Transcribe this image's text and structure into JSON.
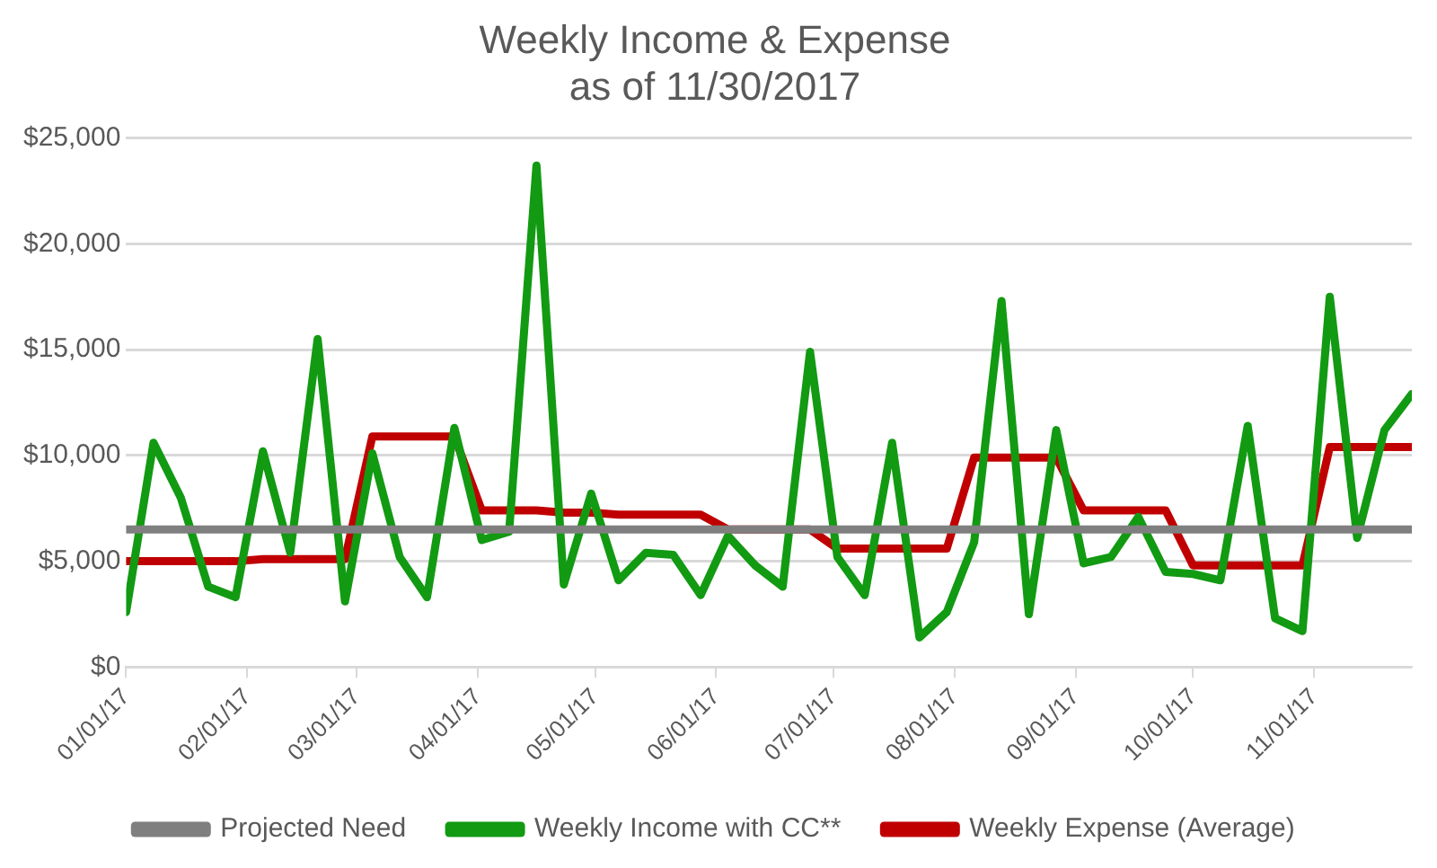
{
  "chart_data": {
    "type": "line",
    "title": "Weekly Income & Expense",
    "subtitle": "as of 11/30/2017",
    "x": [
      "2017-01-01",
      "2017-01-08",
      "2017-01-15",
      "2017-01-22",
      "2017-01-29",
      "2017-02-05",
      "2017-02-12",
      "2017-02-19",
      "2017-02-26",
      "2017-03-05",
      "2017-03-12",
      "2017-03-19",
      "2017-03-26",
      "2017-04-02",
      "2017-04-09",
      "2017-04-16",
      "2017-04-23",
      "2017-04-30",
      "2017-05-07",
      "2017-05-14",
      "2017-05-21",
      "2017-05-28",
      "2017-06-04",
      "2017-06-11",
      "2017-06-18",
      "2017-06-25",
      "2017-07-02",
      "2017-07-09",
      "2017-07-16",
      "2017-07-23",
      "2017-07-30",
      "2017-08-06",
      "2017-08-13",
      "2017-08-20",
      "2017-08-27",
      "2017-09-03",
      "2017-09-10",
      "2017-09-17",
      "2017-09-24",
      "2017-10-01",
      "2017-10-08",
      "2017-10-15",
      "2017-10-22",
      "2017-10-29",
      "2017-11-05",
      "2017-11-12",
      "2017-11-19",
      "2017-11-26"
    ],
    "series": [
      {
        "name": "Projected Need",
        "color": "#7f7f7f",
        "values": [
          6500,
          6500,
          6500,
          6500,
          6500,
          6500,
          6500,
          6500,
          6500,
          6500,
          6500,
          6500,
          6500,
          6500,
          6500,
          6500,
          6500,
          6500,
          6500,
          6500,
          6500,
          6500,
          6500,
          6500,
          6500,
          6500,
          6500,
          6500,
          6500,
          6500,
          6500,
          6500,
          6500,
          6500,
          6500,
          6500,
          6500,
          6500,
          6500,
          6500,
          6500,
          6500,
          6500,
          6500,
          6500,
          6500,
          6500,
          6500
        ]
      },
      {
        "name": "Weekly Income with CC**",
        "color": "#129a12",
        "values": [
          2600,
          10600,
          8000,
          3800,
          3300,
          10200,
          5400,
          15500,
          3100,
          10100,
          5200,
          3300,
          11300,
          6000,
          6400,
          23700,
          3900,
          8200,
          4100,
          5400,
          5300,
          3400,
          6200,
          4800,
          3800,
          14900,
          5200,
          3400,
          10600,
          1400,
          2600,
          5900,
          17300,
          2500,
          11200,
          4900,
          5200,
          7100,
          4500,
          4400,
          4100,
          11400,
          2300,
          1700,
          17500,
          6100,
          11200,
          12900
        ]
      },
      {
        "name": "Weekly Expense (Average)",
        "color": "#c00000",
        "values": [
          5000,
          5000,
          5000,
          5000,
          5000,
          5100,
          5100,
          5100,
          5100,
          10900,
          10900,
          10900,
          10900,
          7400,
          7400,
          7400,
          7300,
          7300,
          7200,
          7200,
          7200,
          7200,
          6500,
          6500,
          6500,
          6500,
          5600,
          5600,
          5600,
          5600,
          5600,
          9900,
          9900,
          9900,
          9900,
          7400,
          7400,
          7400,
          7400,
          4800,
          4800,
          4800,
          4800,
          4800,
          10400,
          10400,
          10400,
          10400
        ]
      }
    ],
    "ylim": [
      0,
      25000
    ],
    "yticks": [
      {
        "value": 0,
        "label": "$0"
      },
      {
        "value": 5000,
        "label": "$5,000"
      },
      {
        "value": 10000,
        "label": "$10,000"
      },
      {
        "value": 15000,
        "label": "$15,000"
      },
      {
        "value": 20000,
        "label": "$20,000"
      },
      {
        "value": 25000,
        "label": "$25,000"
      }
    ],
    "xlim": [
      "2017-01-01",
      "2017-11-26"
    ],
    "xticks": [
      {
        "value": "2017-01-01",
        "label": "01/01/17"
      },
      {
        "value": "2017-02-01",
        "label": "02/01/17"
      },
      {
        "value": "2017-03-01",
        "label": "03/01/17"
      },
      {
        "value": "2017-04-01",
        "label": "04/01/17"
      },
      {
        "value": "2017-05-01",
        "label": "05/01/17"
      },
      {
        "value": "2017-06-01",
        "label": "06/01/17"
      },
      {
        "value": "2017-07-01",
        "label": "07/01/17"
      },
      {
        "value": "2017-08-01",
        "label": "08/01/17"
      },
      {
        "value": "2017-09-01",
        "label": "09/01/17"
      },
      {
        "value": "2017-10-01",
        "label": "10/01/17"
      },
      {
        "value": "2017-11-01",
        "label": "11/01/17"
      }
    ],
    "grid": "y",
    "legend": "bottom",
    "marker": "none",
    "line_style": "solid"
  }
}
